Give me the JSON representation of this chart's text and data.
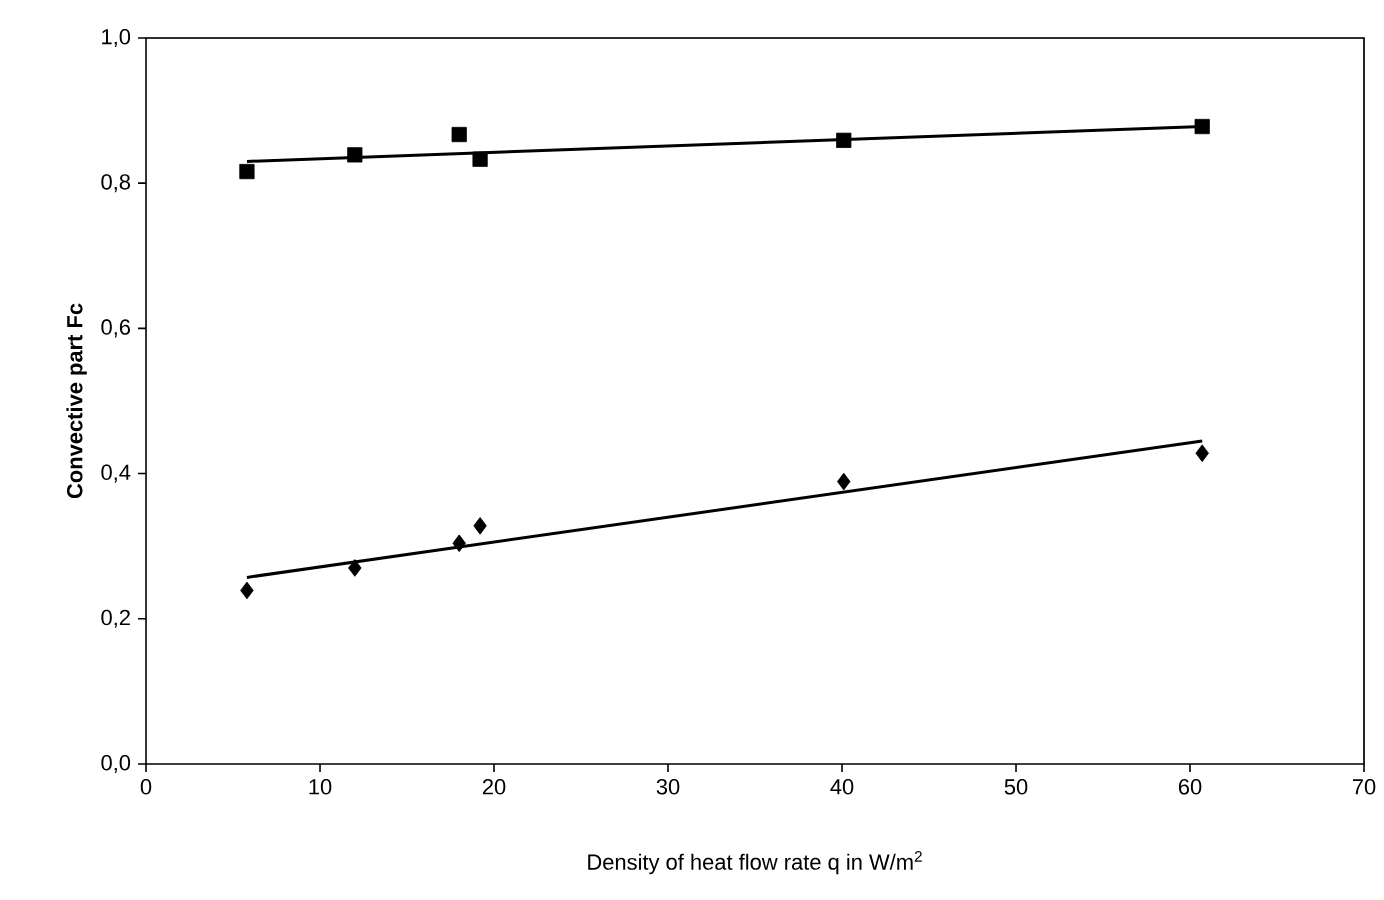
{
  "chart_data": {
    "type": "scatter",
    "xlabel": "Density of heat flow rate q in W/m$^{2}$",
    "ylabel": "Convective part Fc",
    "xlim": [
      0,
      70
    ],
    "ylim": [
      0,
      1
    ],
    "xticks": [
      0,
      10,
      20,
      30,
      40,
      50,
      60,
      70
    ],
    "yticks": [
      {
        "value": 0,
        "label": "0,0"
      },
      {
        "value": 0.2,
        "label": "0,2"
      },
      {
        "value": 0.4,
        "label": "0,4"
      },
      {
        "value": 0.6,
        "label": "0,6"
      },
      {
        "value": 0.8,
        "label": "0,8"
      },
      {
        "value": 1,
        "label": "1,0"
      }
    ],
    "grid": false,
    "series": [
      {
        "marker": "square",
        "color": "#000000",
        "x": [
          5.8,
          12.0,
          18.0,
          19.2,
          40.1,
          60.7
        ],
        "values": [
          0.816,
          0.839,
          0.867,
          0.833,
          0.859,
          0.878
        ]
      },
      {
        "type": "line",
        "marker": "none",
        "line_style": "solid",
        "color": "#000000",
        "x": [
          5.8,
          60.7
        ],
        "values": [
          0.83,
          0.878
        ]
      },
      {
        "marker": "diamond",
        "color": "#000000",
        "x": [
          5.8,
          12.0,
          18.0,
          19.2,
          40.1,
          60.7
        ],
        "values": [
          0.239,
          0.27,
          0.304,
          0.328,
          0.389,
          0.428
        ]
      },
      {
        "type": "line",
        "marker": "none",
        "line_style": "solid",
        "color": "#000000",
        "x": [
          5.8,
          60.7
        ],
        "values": [
          0.257,
          0.445
        ]
      }
    ]
  }
}
